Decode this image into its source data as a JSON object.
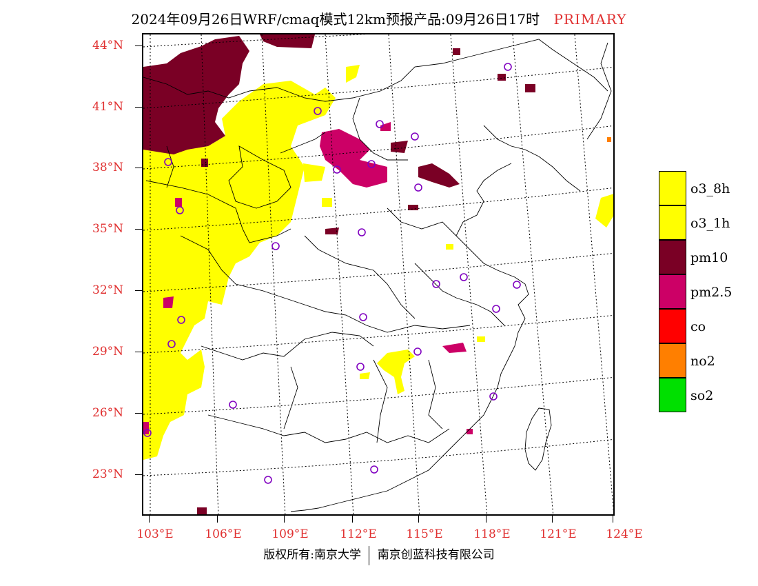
{
  "title": {
    "main": "2024年09月26日WRF/cmaq模式12km预报产品:09月26日17时",
    "tag": "PRIMARY"
  },
  "axes": {
    "lat_labels": [
      "44°N",
      "41°N",
      "38°N",
      "35°N",
      "32°N",
      "29°N",
      "26°N",
      "23°N"
    ],
    "lon_labels": [
      "103°E",
      "106°E",
      "109°E",
      "112°E",
      "115°E",
      "118°E",
      "121°E",
      "124°E"
    ]
  },
  "legend": {
    "items": [
      {
        "label": "o3_8h",
        "color": "#ffff00"
      },
      {
        "label": "o3_1h",
        "color": "#ffff00"
      },
      {
        "label": "pm10",
        "color": "#7a0025"
      },
      {
        "label": "pm2.5",
        "color": "#cc0066"
      },
      {
        "label": "co",
        "color": "#ff0000"
      },
      {
        "label": "no2",
        "color": "#ff7f00"
      },
      {
        "label": "so2",
        "color": "#00e000"
      }
    ]
  },
  "footer": {
    "left": "版权所有:南京大学",
    "right": "南京创蓝科技有限公司"
  }
}
